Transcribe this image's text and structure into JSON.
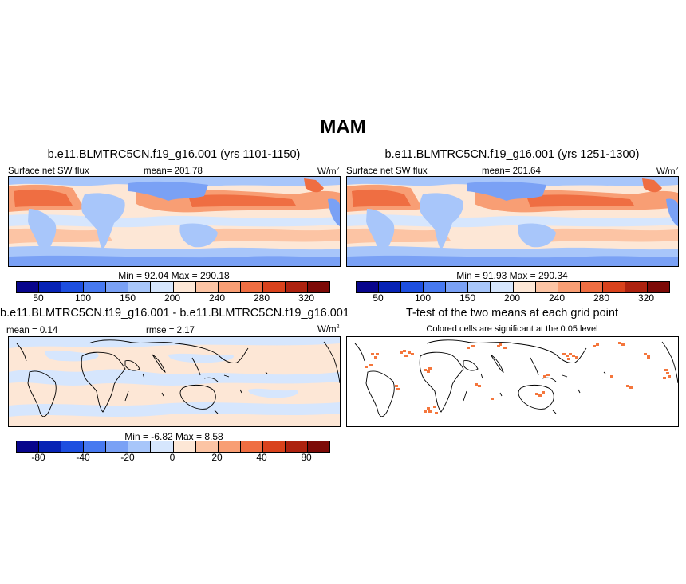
{
  "title": "MAM",
  "colors": {
    "scale": [
      "#08058c",
      "#0723b5",
      "#1d4fe0",
      "#4779f0",
      "#7aa1f5",
      "#a8c6fa",
      "#d6e6fd",
      "#fde7d6",
      "#fcc4a4",
      "#f89e74",
      "#ef6e42",
      "#d9421c",
      "#ad220f",
      "#7d0a07"
    ],
    "ttest": "#f4763c"
  },
  "panels": {
    "top_left": {
      "title": "b.e11.BLMTRC5CN.f19_g16.001 (yrs 1101-1150)",
      "left_label": "Surface net SW flux",
      "mean_label": "mean= 201.78",
      "units": "W/m",
      "units_sup": "2",
      "minmax": "Min =  92.04 Max = 290.18",
      "ticks": [
        "50",
        "100",
        "150",
        "200",
        "240",
        "280",
        "320"
      ]
    },
    "top_right": {
      "title": "b.e11.BLMTRC5CN.f19_g16.001 (yrs 1251-1300)",
      "left_label": "Surface net SW flux",
      "mean_label": "mean= 201.64",
      "units": "W/m",
      "units_sup": "2",
      "minmax": "Min =  91.93 Max = 290.34",
      "ticks": [
        "50",
        "100",
        "150",
        "200",
        "240",
        "280",
        "320"
      ]
    },
    "bottom_left": {
      "title": "b.e11.BLMTRC5CN.f19_g16.001 - b.e11.BLMTRC5CN.f19_g16.001",
      "left_label": "mean =   0.14",
      "mean_label": "rmse =   2.17",
      "units": "W/m",
      "units_sup": "2",
      "minmax": "Min =  -6.82 Max =   8.58",
      "ticks": [
        "-80",
        "-40",
        "-20",
        "0",
        "20",
        "40",
        "80"
      ]
    },
    "bottom_right": {
      "title": "T-test of the two means at each grid point",
      "subtitle": "Colored cells are significant at the 0.05 level"
    }
  }
}
